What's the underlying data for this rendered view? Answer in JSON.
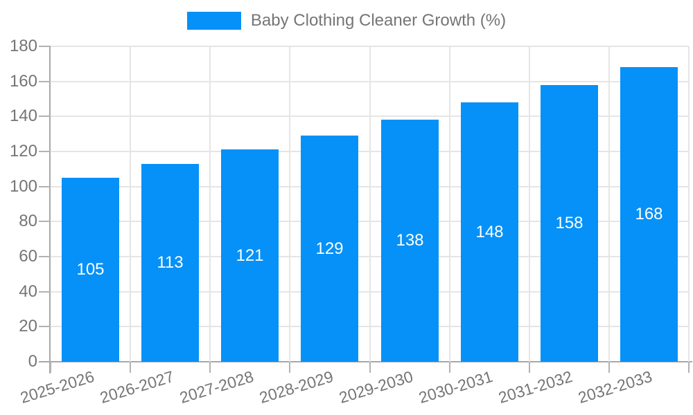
{
  "chart_data": {
    "type": "bar",
    "title": "Baby Clothing Cleaner Growth (%)",
    "categories": [
      "2025-2026",
      "2026-2027",
      "2027-2028",
      "2028-2029",
      "2029-2030",
      "2030-2031",
      "2031-2032",
      "2032-2033"
    ],
    "values": [
      105,
      113,
      121,
      129,
      138,
      148,
      158,
      168
    ],
    "xlabel": "",
    "ylabel": "",
    "ylim": [
      0,
      180
    ],
    "ytick_step": 20,
    "ytick_labels": [
      "0",
      "20",
      "40",
      "60",
      "80",
      "100",
      "120",
      "140",
      "160",
      "180"
    ],
    "grid": "on",
    "legend_position": "top-center",
    "bar_labels_inside": true
  },
  "legend": {
    "label": "Baby Clothing Cleaner Growth (%)"
  },
  "colors": {
    "bar": "#0591f7",
    "bar_label": "#ffffff",
    "label_text": "#757575",
    "grid": "#e5e5e5",
    "axis": "#a8a8a8",
    "tick": "#b2b2b2",
    "background": "#ffffff"
  }
}
